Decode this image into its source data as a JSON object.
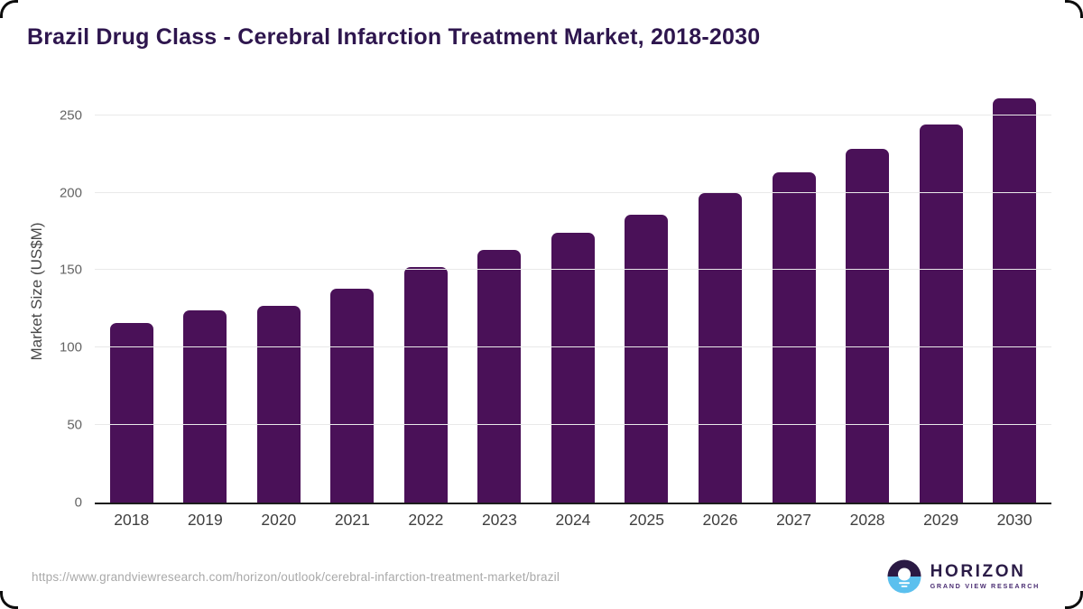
{
  "header": {
    "title": "Brazil Drug Class - Cerebral Infarction Treatment Market, 2018-2030"
  },
  "chart_data": {
    "type": "bar",
    "title": "Brazil Drug Class - Cerebral Infarction Treatment Market, 2018-2030",
    "categories": [
      "2018",
      "2019",
      "2020",
      "2021",
      "2022",
      "2023",
      "2024",
      "2025",
      "2026",
      "2027",
      "2028",
      "2029",
      "2030"
    ],
    "values": [
      116,
      124,
      127,
      138,
      152,
      163,
      174,
      186,
      200,
      213,
      228,
      244,
      261
    ],
    "xlabel": "",
    "ylabel": "Market Size (US$M)",
    "ylim": [
      0,
      262
    ],
    "yticks": [
      0,
      50,
      100,
      150,
      200,
      250
    ],
    "grid": true,
    "legend": false,
    "bar_color": "#4a1158",
    "gridline_color": "#e9e9e9",
    "axis_line_color": "#1c1c1c"
  },
  "footer": {
    "source_url": "https://www.grandviewresearch.com/horizon/outlook/cerebral-infarction-treatment-market/brazil",
    "logo": {
      "wordmark": "HORIZON",
      "tagline": "GRAND VIEW RESEARCH",
      "circle_top_color": "#2b1a44",
      "circle_bottom_color": "#5bc0ee"
    }
  },
  "colors": {
    "title_color": "#2e164e",
    "background": "#ffffff",
    "frame_color": "#0d0d0d"
  }
}
